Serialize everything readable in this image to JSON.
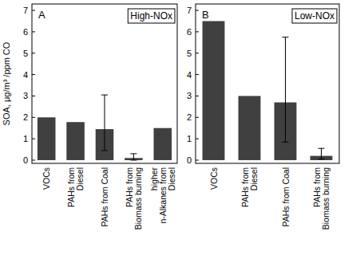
{
  "chart_data": [
    {
      "type": "bar",
      "panel_label": "A",
      "title": "High-NOx",
      "y_label": "SOA, μg/m³ /ppm CO",
      "categories": [
        "VOCs",
        "PAHs from Diesel",
        "PAHs from Coal",
        "PAHs from Biomass burning",
        "higher n-Alkanes from Diesel"
      ],
      "values": [
        2.0,
        1.78,
        1.45,
        0.1,
        1.5
      ],
      "errors_low": [
        null,
        null,
        1.0,
        0.1,
        null
      ],
      "errors_high": [
        null,
        null,
        1.6,
        0.2,
        null
      ],
      "color": "#404040",
      "ylim": [
        -0.15,
        7.3
      ],
      "yticks": [
        0,
        1,
        2,
        3,
        4,
        5,
        6,
        7
      ]
    },
    {
      "type": "bar",
      "panel_label": "B",
      "title": "Low-NOx",
      "categories": [
        "VOCs",
        "PAHs from Diesel",
        "PAHs from Coal",
        "PAHs from Biomass burning"
      ],
      "values": [
        6.5,
        3.0,
        2.7,
        0.2
      ],
      "errors_low": [
        null,
        null,
        1.85,
        0.15
      ],
      "errors_high": [
        null,
        null,
        3.05,
        0.35
      ],
      "color": "#404040",
      "ylim": [
        -0.15,
        7.3
      ],
      "yticks": [
        0,
        1,
        2,
        3,
        4,
        5,
        6,
        7
      ]
    }
  ]
}
